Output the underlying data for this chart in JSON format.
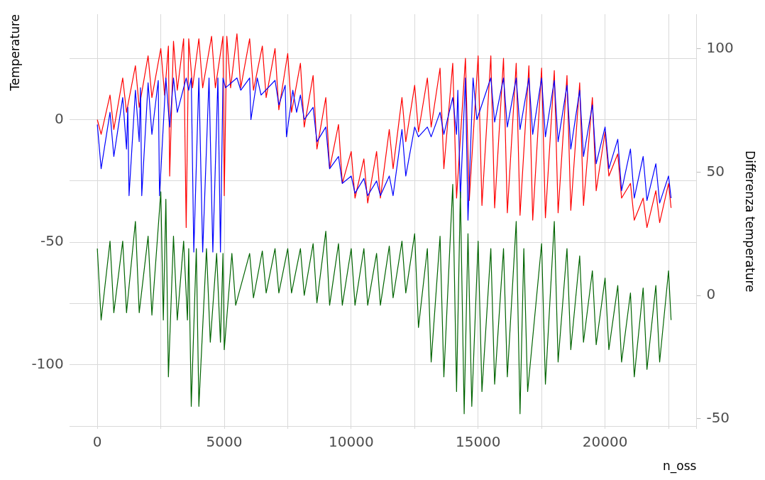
{
  "chart_data": {
    "type": "line",
    "xlabel": "n_oss",
    "ylabel": "Temperature",
    "y2label": "Differenza temperature",
    "xlim": [
      -1100,
      23600
    ],
    "xticks": [
      0,
      {
        "value": 2500,
        "label": null
      },
      5000,
      {
        "value": 7500,
        "label": null
      },
      10000,
      {
        "value": 12500,
        "label": null
      },
      15000,
      {
        "value": 17500,
        "label": null
      },
      20000,
      {
        "value": 22500,
        "label": null
      }
    ],
    "ylim": [
      -126,
      43
    ],
    "yticks": [
      {
        "value": -125,
        "label": null
      },
      -100,
      {
        "value": -75,
        "label": null
      },
      -50,
      {
        "value": -25,
        "label": null
      },
      0,
      {
        "value": 25,
        "label": null
      }
    ],
    "y2lim": [
      -54,
      114
    ],
    "y2ticks": [
      -50,
      0,
      50,
      100
    ],
    "grid": true,
    "legend": false,
    "marker": "none",
    "line_style": "solid",
    "series": [
      {
        "color": "#ff0000",
        "x": [
          0,
          150,
          500,
          650,
          1000,
          1150,
          1500,
          1650,
          2000,
          2150,
          2500,
          2650,
          2800,
          2850,
          3000,
          3150,
          3400,
          3500,
          3600,
          3750,
          4000,
          4150,
          4500,
          4650,
          4950,
          5000,
          5100,
          5250,
          5500,
          5650,
          6000,
          6150,
          6500,
          6650,
          7000,
          7150,
          7500,
          7650,
          8000,
          8150,
          8500,
          8650,
          9000,
          9150,
          9500,
          9650,
          10000,
          10150,
          10500,
          10650,
          11000,
          11150,
          11500,
          11650,
          12000,
          12150,
          12500,
          12650,
          13000,
          13150,
          13500,
          13650,
          14000,
          14150,
          14500,
          14650,
          15000,
          15150,
          15500,
          15650,
          16000,
          16150,
          16500,
          16650,
          17000,
          17150,
          17500,
          17650,
          18000,
          18150,
          18500,
          18650,
          19000,
          19150,
          19500,
          19650,
          20000,
          20150,
          20500,
          20650,
          21000,
          21150,
          21500,
          21650,
          22000,
          22150,
          22500,
          22600
        ],
        "values": [
          0,
          -6,
          10,
          -4,
          17,
          3,
          22,
          5,
          26,
          9,
          29,
          10,
          30,
          -23,
          32,
          12,
          33,
          -44,
          33,
          13,
          33,
          13,
          34,
          13,
          34,
          -31,
          34,
          13,
          35,
          13,
          33,
          12,
          30,
          9,
          29,
          4,
          27,
          3,
          23,
          -3,
          18,
          -12,
          9,
          -20,
          -2,
          -26,
          -13,
          -32,
          -16,
          -34,
          -13,
          -32,
          -4,
          -20,
          9,
          -9,
          14,
          -5,
          17,
          -3,
          21,
          -20,
          23,
          -32,
          25,
          -33,
          26,
          -35,
          26,
          -36,
          25,
          -38,
          23,
          -39,
          22,
          -41,
          21,
          -40,
          20,
          -38,
          18,
          -37,
          15,
          -35,
          9,
          -29,
          -5,
          -23,
          -14,
          -32,
          -26,
          -41,
          -32,
          -44,
          -29,
          -42,
          -26,
          -36
        ]
      },
      {
        "color": "#0000ff",
        "x": [
          0,
          150,
          500,
          650,
          1000,
          1150,
          1200,
          1250,
          1500,
          1650,
          1700,
          1750,
          2000,
          2150,
          2400,
          2450,
          2700,
          2850,
          3000,
          3150,
          3500,
          3600,
          3700,
          3800,
          4000,
          4150,
          4400,
          4550,
          4750,
          4850,
          4950,
          5050,
          5500,
          5650,
          6000,
          6050,
          6300,
          6450,
          7000,
          7150,
          7400,
          7450,
          7700,
          7850,
          8000,
          8150,
          8500,
          8650,
          9000,
          9150,
          9500,
          9650,
          10000,
          10150,
          10500,
          10650,
          11000,
          11150,
          11500,
          11650,
          12000,
          12150,
          12500,
          12650,
          13000,
          13150,
          13500,
          13650,
          14000,
          14150,
          14200,
          14300,
          14500,
          14600,
          14800,
          14950,
          15500,
          15650,
          16000,
          16150,
          16500,
          16650,
          17000,
          17150,
          17500,
          17650,
          18000,
          18150,
          18500,
          18650,
          19000,
          19150,
          19500,
          19650,
          20000,
          20150,
          20500,
          20650,
          21000,
          21150,
          21500,
          21650,
          22000,
          22150,
          22500,
          22600
        ],
        "values": [
          -2,
          -20,
          3,
          -15,
          9,
          -12,
          5,
          -31,
          12,
          -9,
          13,
          -31,
          15,
          -6,
          16,
          -31,
          17,
          -3,
          17,
          3,
          17,
          12,
          17,
          -54,
          17,
          -54,
          17,
          -54,
          17,
          -54,
          17,
          13,
          17,
          12,
          17,
          0,
          17,
          10,
          16,
          6,
          14,
          -7,
          12,
          3,
          10,
          0,
          5,
          -9,
          -3,
          -20,
          -15,
          -26,
          -23,
          -30,
          -24,
          -31,
          -25,
          -31,
          -23,
          -31,
          -4,
          -23,
          -3,
          -7,
          -3,
          -7,
          3,
          -6,
          9,
          -6,
          12,
          -32,
          17,
          -41,
          17,
          0,
          17,
          -1,
          17,
          -3,
          17,
          -4,
          17,
          -6,
          17,
          -7,
          16,
          -9,
          14,
          -12,
          12,
          -15,
          6,
          -18,
          -3,
          -20,
          -8,
          -29,
          -12,
          -32,
          -15,
          -33,
          -18,
          -34,
          -23,
          -32
        ]
      },
      {
        "color": "#006400",
        "axis": "y2",
        "x": [
          0,
          150,
          500,
          650,
          1000,
          1150,
          1500,
          1650,
          2000,
          2150,
          2500,
          2600,
          2700,
          2800,
          3000,
          3150,
          3400,
          3550,
          3600,
          3700,
          3900,
          4000,
          4300,
          4450,
          4700,
          4850,
          4950,
          5000,
          5300,
          5450,
          6000,
          6150,
          6500,
          6650,
          7000,
          7150,
          7500,
          7650,
          8000,
          8150,
          8500,
          8650,
          9000,
          9150,
          9500,
          9650,
          10000,
          10150,
          10500,
          10650,
          11000,
          11150,
          11500,
          11650,
          12000,
          12150,
          12500,
          12650,
          13000,
          13150,
          13500,
          13650,
          14000,
          14150,
          14300,
          14450,
          14600,
          14750,
          15000,
          15150,
          15500,
          15650,
          16000,
          16150,
          16500,
          16650,
          16800,
          16950,
          17500,
          17650,
          18000,
          18150,
          18500,
          18650,
          19000,
          19150,
          19500,
          19650,
          20000,
          20150,
          20500,
          20650,
          21000,
          21150,
          21500,
          21650,
          22000,
          22150,
          22500,
          22600
        ],
        "values": [
          19,
          -10,
          22,
          -7,
          22,
          -7,
          30,
          -7,
          24,
          -8,
          42,
          -10,
          39,
          -33,
          24,
          -10,
          22,
          -10,
          19,
          -45,
          19,
          -45,
          19,
          -19,
          17,
          -19,
          17,
          -22,
          17,
          -4,
          17,
          -1,
          18,
          1,
          19,
          1,
          19,
          1,
          19,
          0,
          21,
          -3,
          26,
          -4,
          21,
          -4,
          19,
          -4,
          19,
          -4,
          17,
          -4,
          20,
          -1,
          22,
          1,
          25,
          -13,
          19,
          -27,
          24,
          -33,
          45,
          -39,
          42,
          -48,
          25,
          -45,
          22,
          -39,
          19,
          -36,
          19,
          -33,
          30,
          -48,
          19,
          -39,
          21,
          -36,
          30,
          -27,
          19,
          -22,
          16,
          -19,
          10,
          -20,
          7,
          -22,
          4,
          -27,
          1,
          -33,
          3,
          -30,
          4,
          -27,
          10,
          -10
        ]
      }
    ]
  }
}
